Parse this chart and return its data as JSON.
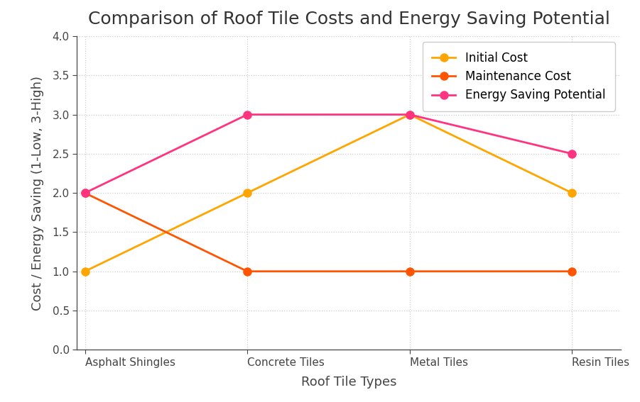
{
  "title": "Comparison of Roof Tile Costs and Energy Saving Potential",
  "xlabel": "Roof Tile Types",
  "ylabel": "Cost / Energy Saving (1-Low, 3-High)",
  "categories": [
    "Asphalt Shingles",
    "Concrete Tiles",
    "Metal Tiles",
    "Resin Tiles"
  ],
  "series": [
    {
      "label": "Initial Cost",
      "values": [
        1.0,
        2.0,
        3.0,
        2.0
      ],
      "color": "#FFA500",
      "marker": "o",
      "linewidth": 2.0
    },
    {
      "label": "Maintenance Cost",
      "values": [
        2.0,
        1.0,
        1.0,
        1.0
      ],
      "color": "#FF5500",
      "marker": "o",
      "linewidth": 2.0
    },
    {
      "label": "Energy Saving Potential",
      "values": [
        2.0,
        3.0,
        3.0,
        2.5
      ],
      "color": "#FF3380",
      "marker": "o",
      "linewidth": 2.0
    }
  ],
  "ylim": [
    0.0,
    4.0
  ],
  "yticks": [
    0.0,
    0.5,
    1.0,
    1.5,
    2.0,
    2.5,
    3.0,
    3.5,
    4.0
  ],
  "grid_color": "#cccccc",
  "grid_linestyle": ":",
  "background_color": "#ffffff",
  "legend_loc": "upper right",
  "title_fontsize": 18,
  "axis_label_fontsize": 13,
  "tick_fontsize": 11,
  "legend_fontsize": 12,
  "marker_size": 8
}
